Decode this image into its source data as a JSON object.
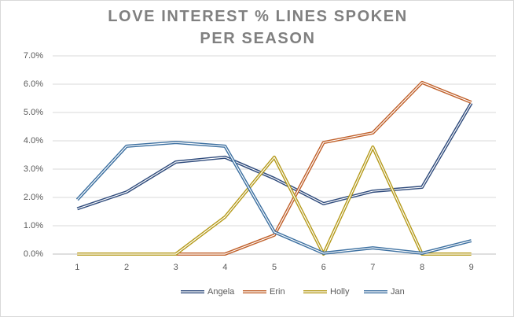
{
  "chart_data": {
    "type": "line",
    "title": "LOVE INTEREST % LINES SPOKEN PER SEASON",
    "categories": [
      "1",
      "2",
      "3",
      "4",
      "5",
      "6",
      "7",
      "8",
      "9"
    ],
    "series": [
      {
        "name": "Angela",
        "color": "#2f4b7c",
        "values": [
          1.6,
          2.19,
          3.25,
          3.42,
          2.67,
          1.78,
          2.22,
          2.36,
          5.33
        ]
      },
      {
        "name": "Erin",
        "color": "#c0602a",
        "values": [
          0,
          0,
          0,
          0,
          0.67,
          3.94,
          4.28,
          6.06,
          5.36
        ]
      },
      {
        "name": "Holly",
        "color": "#b59a1a",
        "values": [
          0,
          0,
          0,
          1.31,
          3.42,
          0,
          3.78,
          0,
          0
        ]
      },
      {
        "name": "Jan",
        "color": "#3b6fa0",
        "values": [
          1.92,
          3.81,
          3.94,
          3.81,
          0.78,
          0.03,
          0.22,
          0.03,
          0.47
        ]
      }
    ],
    "ylim": [
      0,
      7
    ],
    "yticks": [
      {
        "value": 0,
        "label": "0.0%"
      },
      {
        "value": 1,
        "label": "1.0%"
      },
      {
        "value": 2,
        "label": "2.0%"
      },
      {
        "value": 3,
        "label": "3.0%"
      },
      {
        "value": 4,
        "label": "4.0%"
      },
      {
        "value": 5,
        "label": "5.0%"
      },
      {
        "value": 6,
        "label": "6.0%"
      },
      {
        "value": 7,
        "label": "7.0%"
      }
    ],
    "grid": true,
    "legend": "bottom"
  }
}
